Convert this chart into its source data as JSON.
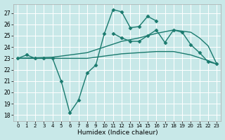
{
  "xlabel": "Humidex (Indice chaleur)",
  "background_color": "#c8e8e8",
  "grid_color": "#ffffff",
  "line_color": "#1a7a6e",
  "ylim": [
    17.5,
    27.8
  ],
  "xlim": [
    -0.5,
    23.5
  ],
  "yticks": [
    18,
    19,
    20,
    21,
    22,
    23,
    24,
    25,
    26,
    27
  ],
  "xticks": [
    0,
    1,
    2,
    3,
    4,
    5,
    6,
    7,
    8,
    9,
    10,
    11,
    12,
    13,
    14,
    15,
    16,
    17,
    18,
    19,
    20,
    21,
    22,
    23
  ],
  "series": [
    {
      "x": [
        0,
        1,
        2,
        3,
        4,
        5,
        6,
        7,
        8,
        9,
        10,
        11,
        12,
        13,
        14,
        15,
        16
      ],
      "y": [
        23.0,
        23.3,
        23.0,
        23.0,
        23.0,
        21.0,
        18.2,
        19.3,
        21.7,
        22.4,
        25.2,
        27.3,
        27.1,
        25.7,
        25.8,
        26.7,
        26.3
      ],
      "marker": "D",
      "markersize": 2.5,
      "linewidth": 1.0
    },
    {
      "x": [
        11,
        12,
        13,
        14,
        15,
        16,
        17,
        18,
        19,
        20,
        21,
        22,
        23
      ],
      "y": [
        25.2,
        24.8,
        24.5,
        24.5,
        25.0,
        25.5,
        24.4,
        25.5,
        25.3,
        24.2,
        23.5,
        22.7,
        22.5
      ],
      "marker": "D",
      "markersize": 2.5,
      "linewidth": 1.0
    },
    {
      "x": [
        0,
        4,
        8,
        10,
        12,
        14,
        16,
        18,
        20,
        21,
        22,
        23
      ],
      "y": [
        23.0,
        23.1,
        23.5,
        24.0,
        24.5,
        24.8,
        25.2,
        25.5,
        25.3,
        24.8,
        24.1,
        22.5
      ],
      "marker": null,
      "markersize": 0,
      "linewidth": 1.0
    },
    {
      "x": [
        0,
        4,
        8,
        10,
        12,
        14,
        16,
        18,
        20,
        22,
        23
      ],
      "y": [
        23.0,
        23.0,
        23.0,
        23.2,
        23.4,
        23.5,
        23.6,
        23.6,
        23.3,
        22.8,
        22.5
      ],
      "marker": null,
      "markersize": 0,
      "linewidth": 1.0
    }
  ]
}
